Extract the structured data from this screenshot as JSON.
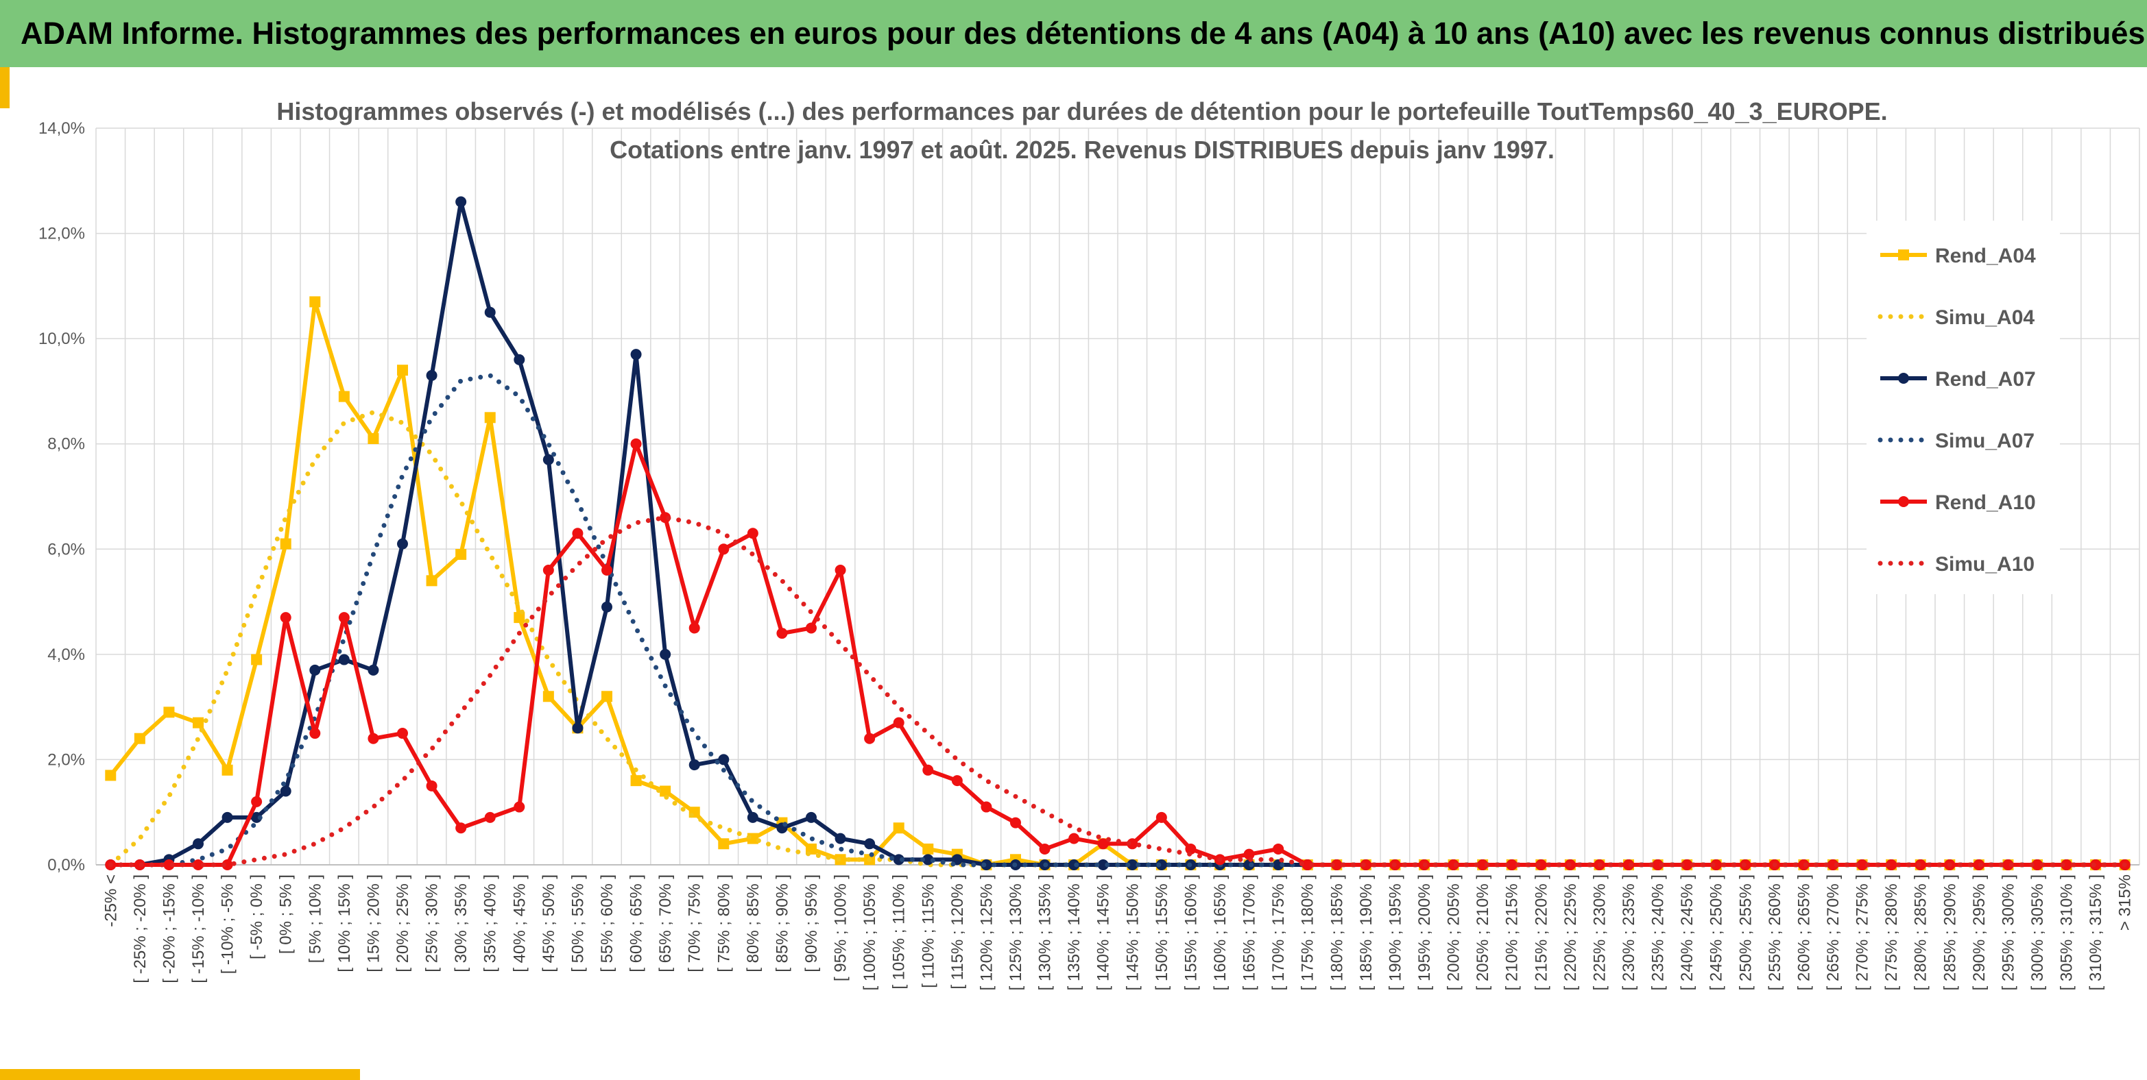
{
  "banner": {
    "title": "ADAM Informe. Histogrammes des performances en euros pour des détentions de 4 ans (A04) à 10 ans (A10) avec les revenus connus distribués"
  },
  "colors": {
    "banner_bg": "#7cc67a",
    "accent": "#f5b800",
    "A04": "#ffc000",
    "A04_sim": "#f5c518",
    "A07": "#0f2557",
    "A07_sim": "#24497a",
    "A10": "#ee1111",
    "A10_sim": "#e02020"
  },
  "chart_data": {
    "type": "line",
    "title_lines": [
      "Histogrammes observés (-) et modélisés (...) des performances par durées de détention pour le portefeuille ToutTemps60_40_3_EUROPE.",
      "Cotations entre janv. 1997 et août. 2025. Revenus DISTRIBUES depuis janv 1997."
    ],
    "ylim": [
      0,
      14
    ],
    "yticks": [
      "0,0%",
      "2,0%",
      "4,0%",
      "6,0%",
      "8,0%",
      "10,0%",
      "12,0%",
      "14,0%"
    ],
    "grid": true,
    "legend_position": "right",
    "categories": [
      "-25% <",
      "[ -25% ; -20% ]",
      "[ -20% ; -15% ]",
      "[ -15% ; -10% ]",
      "[ -10% ; -5% ]",
      "[ -5% ; 0% ]",
      "[ 0% ; 5% ]",
      "[ 5% ; 10% ]",
      "[ 10% ; 15% ]",
      "[ 15% ; 20% ]",
      "[ 20% ; 25% ]",
      "[ 25% ; 30% ]",
      "[ 30% ; 35% ]",
      "[ 35% ; 40% ]",
      "[ 40% ; 45% ]",
      "[ 45% ; 50% ]",
      "[ 50% ; 55% ]",
      "[ 55% ; 60% ]",
      "[ 60% ; 65% ]",
      "[ 65% ; 70% ]",
      "[ 70% ; 75% ]",
      "[ 75% ; 80% ]",
      "[ 80% ; 85% ]",
      "[ 85% ; 90% ]",
      "[ 90% ; 95% ]",
      "[ 95% ; 100% ]",
      "[ 100% ; 105% ]",
      "[ 105% ; 110% ]",
      "[ 110% ; 115% ]",
      "[ 115% ; 120% ]",
      "[ 120% ; 125% ]",
      "[ 125% ; 130% ]",
      "[ 130% ; 135% ]",
      "[ 135% ; 140% ]",
      "[ 140% ; 145% ]",
      "[ 145% ; 150% ]",
      "[ 150% ; 155% ]",
      "[ 155% ; 160% ]",
      "[ 160% ; 165% ]",
      "[ 165% ; 170% ]",
      "[ 170% ; 175% ]",
      "[ 175% ; 180% ]",
      "[ 180% ; 185% ]",
      "[ 185% ; 190% ]",
      "[ 190% ; 195% ]",
      "[ 195% ; 200% ]",
      "[ 200% ; 205% ]",
      "[ 205% ; 210% ]",
      "[ 210% ; 215% ]",
      "[ 215% ; 220% ]",
      "[ 220% ; 225% ]",
      "[ 225% ; 230% ]",
      "[ 230% ; 235% ]",
      "[ 235% ; 240% ]",
      "[ 240% ; 245% ]",
      "[ 245% ; 250% ]",
      "[ 250% ; 255% ]",
      "[ 255% ; 260% ]",
      "[ 260% ; 265% ]",
      "[ 265% ; 270% ]",
      "[ 270% ; 275% ]",
      "[ 275% ; 280% ]",
      "[ 280% ; 285% ]",
      "[ 285% ; 290% ]",
      "[ 290% ; 295% ]",
      "[ 295% ; 300% ]",
      "[ 300% ; 305% ]",
      "[ 305% ; 310% ]",
      "[ 310% ; 315% ]",
      "> 315%"
    ],
    "series": [
      {
        "name": "Rend_A04",
        "style": "solid",
        "marker": "square",
        "color": "#ffc000",
        "values": [
          1.7,
          2.4,
          2.9,
          2.7,
          1.8,
          3.9,
          6.1,
          10.7,
          8.9,
          8.1,
          9.4,
          5.4,
          5.9,
          8.5,
          4.7,
          3.2,
          2.6,
          3.2,
          1.6,
          1.4,
          1.0,
          0.4,
          0.5,
          0.8,
          0.3,
          0.1,
          0.1,
          0.7,
          0.3,
          0.2,
          0.0,
          0.1,
          0.0,
          0.0,
          0.4,
          0.0,
          0,
          0,
          0,
          0,
          0,
          0,
          0,
          0,
          0,
          0,
          0,
          0,
          0,
          0,
          0,
          0,
          0,
          0,
          0,
          0,
          0,
          0,
          0,
          0,
          0,
          0,
          0,
          0,
          0,
          0,
          0,
          0,
          0,
          0
        ]
      },
      {
        "name": "Simu_A04",
        "style": "dotted",
        "marker": "none",
        "color": "#f5c518",
        "values": [
          0.0,
          0.5,
          1.3,
          2.4,
          3.7,
          5.2,
          6.6,
          7.7,
          8.4,
          8.6,
          8.4,
          7.8,
          6.9,
          5.9,
          4.9,
          3.9,
          3.1,
          2.4,
          1.8,
          1.3,
          0.9,
          0.7,
          0.5,
          0.3,
          0.2,
          0.1,
          0.1,
          0.1,
          0.0,
          0,
          0,
          0,
          0,
          0,
          0,
          0,
          0,
          0,
          0,
          0,
          0,
          0,
          0,
          0,
          0,
          0,
          0,
          0,
          0,
          0,
          0,
          0,
          0,
          0,
          0,
          0,
          0,
          0,
          0,
          0,
          0,
          0,
          0,
          0,
          0,
          0,
          0,
          0,
          0,
          0
        ]
      },
      {
        "name": "Rend_A07",
        "style": "solid",
        "marker": "circle",
        "color": "#0f2557",
        "values": [
          0.0,
          0.0,
          0.1,
          0.4,
          0.9,
          0.9,
          1.4,
          3.7,
          3.9,
          3.7,
          6.1,
          9.3,
          12.6,
          10.5,
          9.6,
          7.7,
          2.6,
          4.9,
          9.7,
          4.0,
          1.9,
          2.0,
          0.9,
          0.7,
          0.9,
          0.5,
          0.4,
          0.1,
          0.1,
          0.1,
          0.0,
          0.0,
          0.0,
          0.0,
          0.0,
          0.0,
          0.0,
          0.0,
          0.0,
          0.0,
          0.0,
          0.0,
          0,
          0,
          0,
          0,
          0,
          0,
          0,
          0,
          0,
          0,
          0,
          0,
          0,
          0,
          0,
          0,
          0,
          0,
          0,
          0,
          0,
          0,
          0,
          0,
          0,
          0,
          0,
          0
        ]
      },
      {
        "name": "Simu_A07",
        "style": "dotted",
        "marker": "none",
        "color": "#24497a",
        "values": [
          0.0,
          0.0,
          0.0,
          0.1,
          0.3,
          0.8,
          1.6,
          2.8,
          4.3,
          5.9,
          7.4,
          8.5,
          9.2,
          9.3,
          8.9,
          8.0,
          6.9,
          5.7,
          4.5,
          3.4,
          2.5,
          1.8,
          1.2,
          0.8,
          0.5,
          0.3,
          0.2,
          0.1,
          0.1,
          0.0,
          0,
          0,
          0,
          0,
          0,
          0,
          0,
          0,
          0,
          0,
          0,
          0,
          0,
          0,
          0,
          0,
          0,
          0,
          0,
          0,
          0,
          0,
          0,
          0,
          0,
          0,
          0,
          0,
          0,
          0,
          0,
          0,
          0,
          0,
          0,
          0,
          0,
          0,
          0,
          0
        ]
      },
      {
        "name": "Rend_A10",
        "style": "solid",
        "marker": "circle",
        "color": "#ee1111",
        "values": [
          0.0,
          0.0,
          0.0,
          0.0,
          0.0,
          1.2,
          4.7,
          2.5,
          4.7,
          2.4,
          2.5,
          1.5,
          0.7,
          0.9,
          1.1,
          5.6,
          6.3,
          5.6,
          8.0,
          6.6,
          4.5,
          6.0,
          6.3,
          4.4,
          4.5,
          5.6,
          2.4,
          2.7,
          1.8,
          1.6,
          1.1,
          0.8,
          0.3,
          0.5,
          0.4,
          0.4,
          0.9,
          0.3,
          0.1,
          0.2,
          0.3,
          0.0,
          0.0,
          0.0,
          0,
          0,
          0,
          0,
          0,
          0,
          0,
          0,
          0,
          0,
          0,
          0,
          0,
          0,
          0,
          0,
          0,
          0,
          0,
          0,
          0,
          0,
          0,
          0,
          0,
          0
        ]
      },
      {
        "name": "Simu_A10",
        "style": "dotted",
        "marker": "none",
        "color": "#e02020",
        "values": [
          0.0,
          0.0,
          0.0,
          0.0,
          0.0,
          0.1,
          0.2,
          0.4,
          0.7,
          1.1,
          1.6,
          2.2,
          2.9,
          3.6,
          4.4,
          5.1,
          5.7,
          6.2,
          6.5,
          6.6,
          6.5,
          6.3,
          5.9,
          5.4,
          4.8,
          4.2,
          3.6,
          3.0,
          2.5,
          2.0,
          1.6,
          1.3,
          1.0,
          0.7,
          0.5,
          0.4,
          0.3,
          0.2,
          0.1,
          0.1,
          0.1,
          0.0,
          0.0,
          0,
          0,
          0,
          0,
          0,
          0,
          0,
          0,
          0,
          0,
          0,
          0,
          0,
          0,
          0,
          0,
          0,
          0,
          0,
          0,
          0,
          0,
          0,
          0,
          0,
          0,
          0
        ]
      }
    ]
  }
}
